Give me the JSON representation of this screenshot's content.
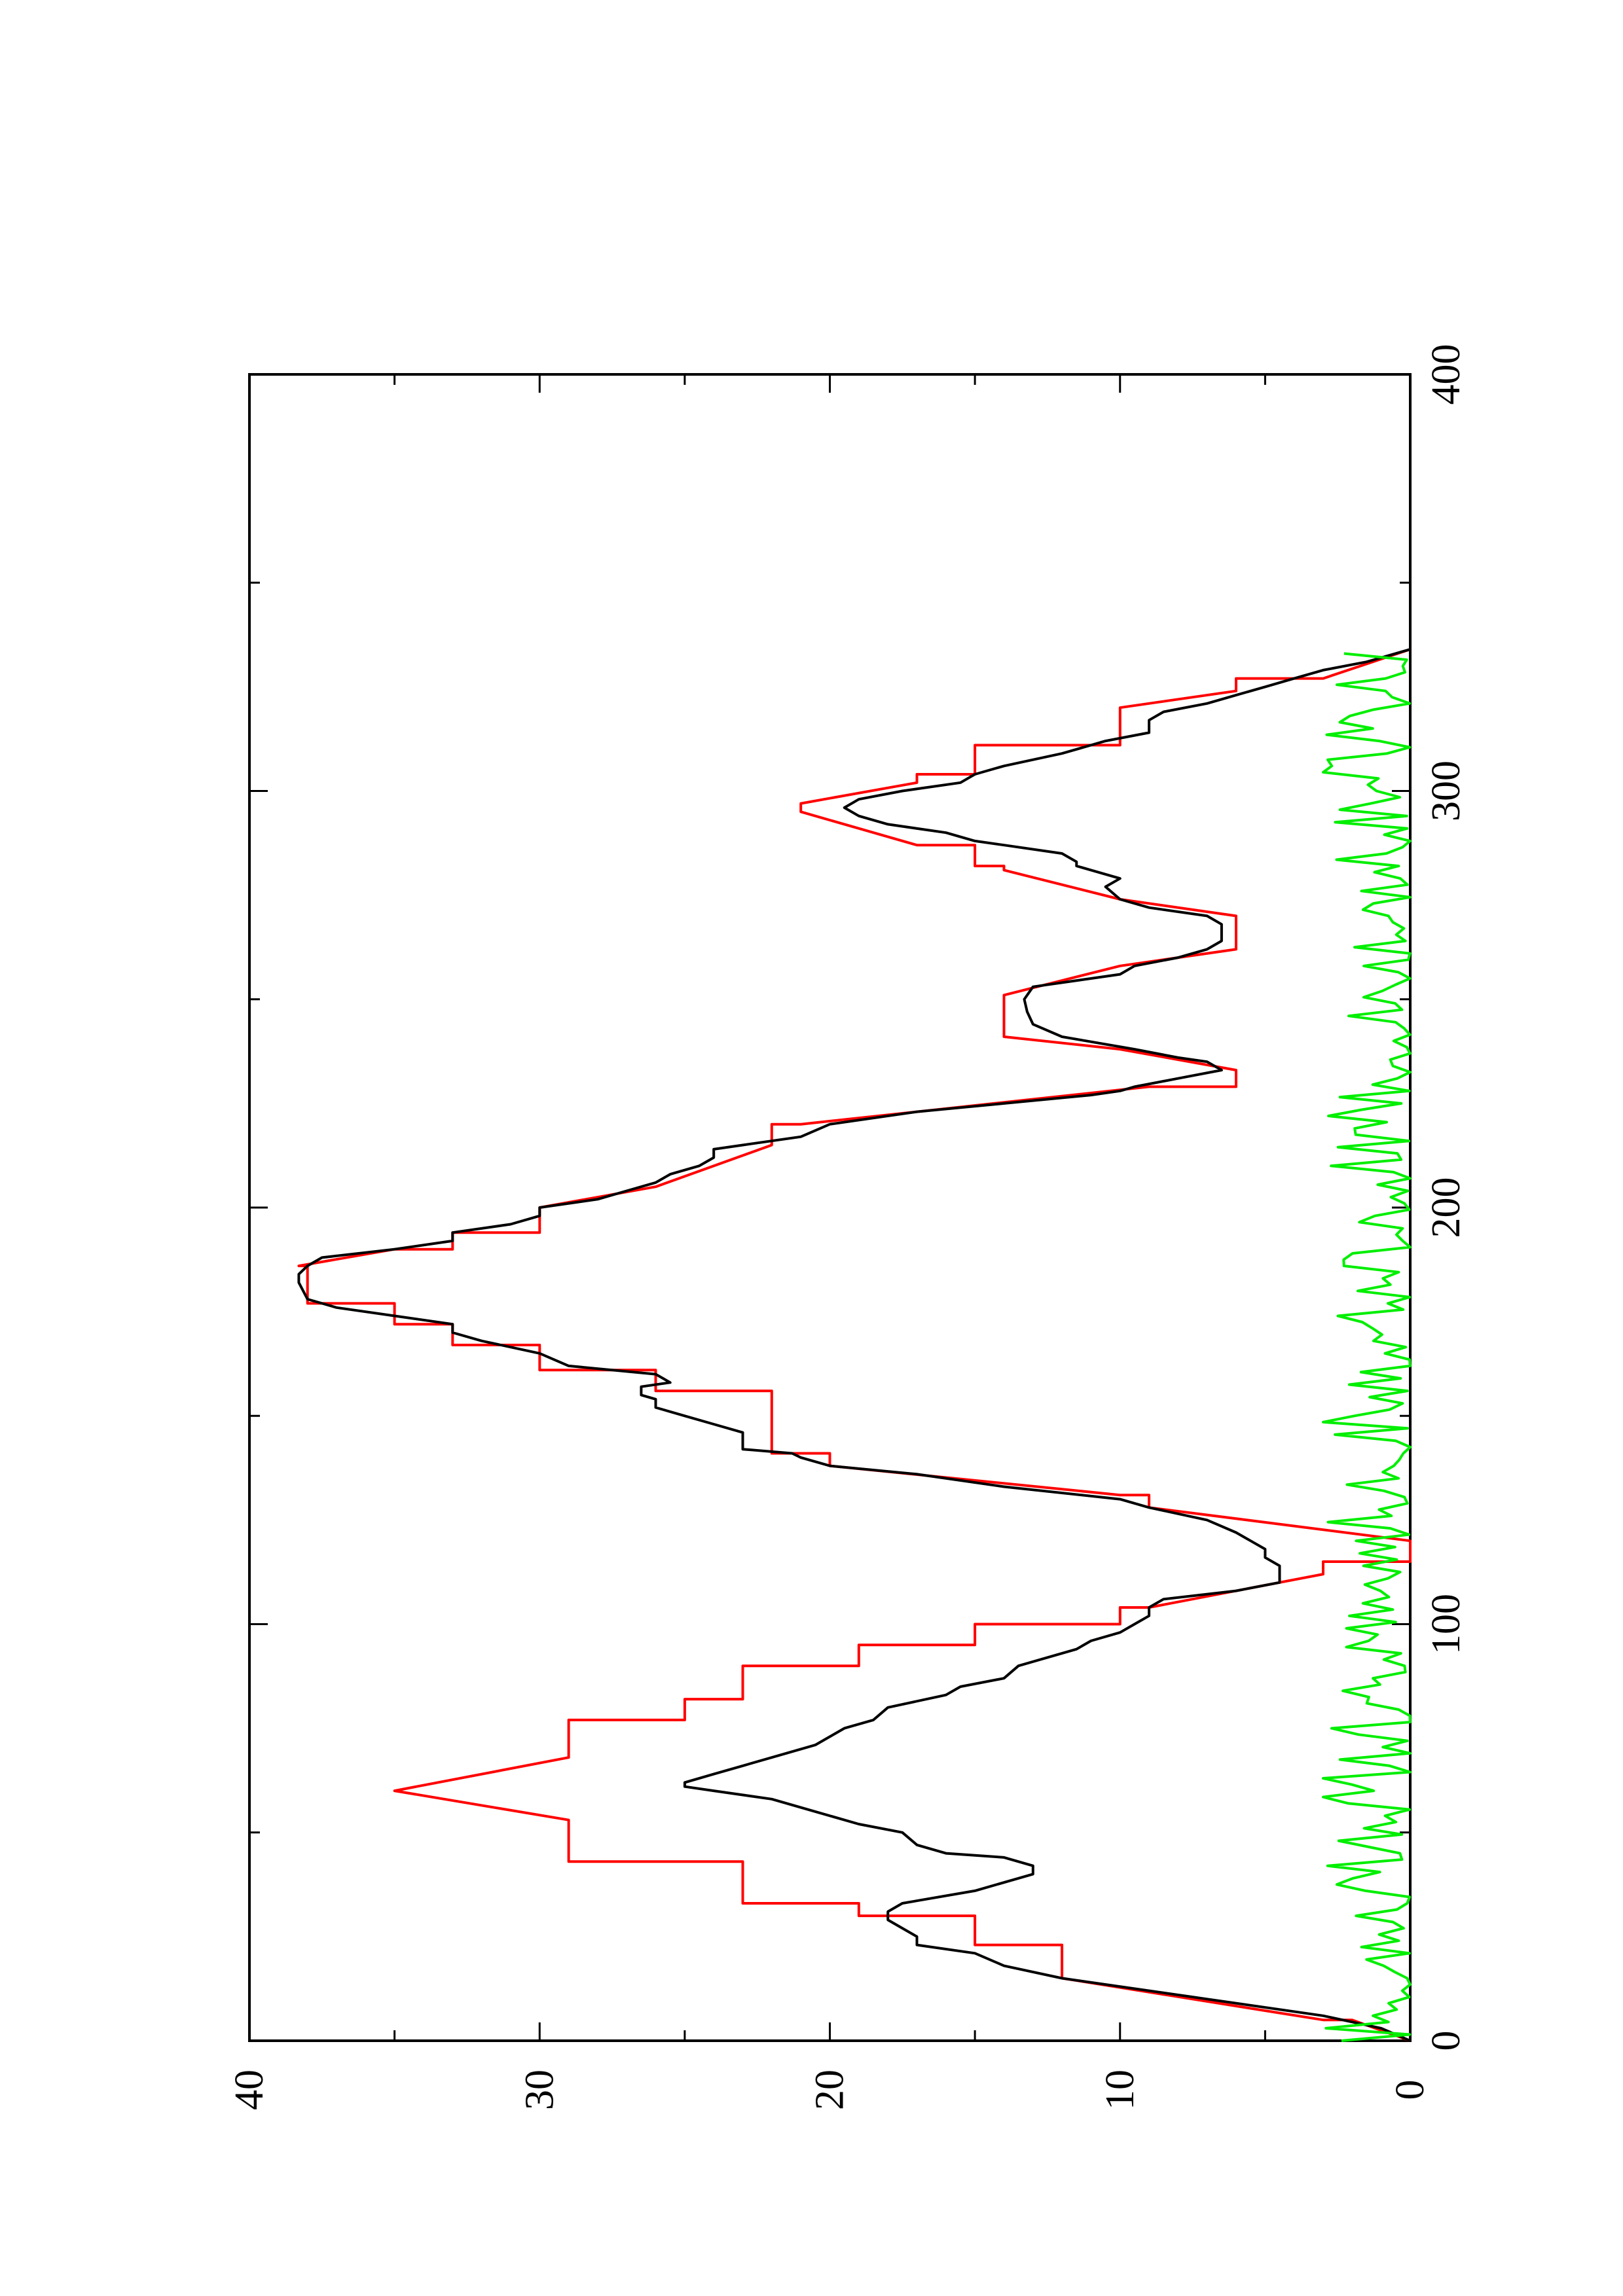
{
  "chart_data": {
    "type": "line",
    "orientation": "rotated 90° counter-clockwise (page in landscape printed on portrait sheet)",
    "title": "",
    "xlabel": "",
    "ylabel": "",
    "xlim": [
      0,
      400
    ],
    "ylim": [
      0,
      40
    ],
    "x_ticks": [
      0,
      100,
      200,
      300,
      400
    ],
    "y_ticks": [
      0,
      10,
      20,
      30,
      40
    ],
    "x_minor_ticks": [
      50,
      150,
      250,
      350
    ],
    "y_minor_ticks": [
      5,
      15,
      25,
      35
    ],
    "x_tick_labels": [
      "0",
      "100",
      "200",
      "300",
      "400"
    ],
    "y_tick_labels": [
      "0",
      "10",
      "20",
      "30",
      "40"
    ],
    "grid": false,
    "legend": "none",
    "series": [
      {
        "color": "#ff0000",
        "style": "stepped triangular profile",
        "points": [
          [
            0,
            0
          ],
          [
            5,
            2
          ],
          [
            5,
            3
          ],
          [
            15,
            12
          ],
          [
            23,
            12
          ],
          [
            23,
            15
          ],
          [
            30,
            15
          ],
          [
            30,
            19
          ],
          [
            33,
            19
          ],
          [
            33,
            23
          ],
          [
            43,
            23
          ],
          [
            43,
            29
          ],
          [
            53,
            29
          ],
          [
            60,
            35
          ],
          [
            60,
            35
          ],
          [
            68,
            29
          ],
          [
            77,
            29
          ],
          [
            77,
            25
          ],
          [
            82,
            25
          ],
          [
            82,
            23
          ],
          [
            90,
            23
          ],
          [
            90,
            19
          ],
          [
            95,
            19
          ],
          [
            95,
            15
          ],
          [
            100,
            15
          ],
          [
            100,
            10
          ],
          [
            104,
            10
          ],
          [
            104,
            9
          ],
          [
            112,
            3
          ],
          [
            115,
            3
          ],
          [
            115,
            0
          ],
          [
            120,
            0
          ],
          [
            128,
            9
          ],
          [
            131,
            9
          ],
          [
            131,
            10
          ],
          [
            138,
            20
          ],
          [
            141,
            20
          ],
          [
            141,
            22
          ],
          [
            156,
            22
          ],
          [
            156,
            26
          ],
          [
            161,
            26
          ],
          [
            161,
            30
          ],
          [
            167,
            30
          ],
          [
            167,
            33
          ],
          [
            172,
            33
          ],
          [
            172,
            35
          ],
          [
            177,
            35
          ],
          [
            177,
            38
          ],
          [
            186,
            38
          ],
          [
            186,
            38.3
          ],
          [
            190,
            35
          ],
          [
            190,
            33
          ],
          [
            194,
            33
          ],
          [
            194,
            30
          ],
          [
            200,
            30
          ],
          [
            200,
            30
          ],
          [
            205,
            26
          ],
          [
            205,
            26
          ],
          [
            215,
            22
          ],
          [
            220,
            22
          ],
          [
            220,
            21
          ],
          [
            229,
            9
          ],
          [
            229,
            6
          ],
          [
            233,
            6
          ],
          [
            238,
            10
          ],
          [
            238,
            10
          ],
          [
            241,
            14
          ],
          [
            251,
            14
          ],
          [
            251,
            14
          ],
          [
            258,
            10
          ],
          [
            258,
            10
          ],
          [
            262,
            6
          ],
          [
            270,
            6
          ],
          [
            274,
            10
          ],
          [
            274,
            10
          ],
          [
            281,
            14
          ],
          [
            282,
            14
          ],
          [
            282,
            15
          ],
          [
            287,
            15
          ],
          [
            287,
            17
          ],
          [
            295,
            21
          ],
          [
            297,
            21
          ],
          [
            302,
            17
          ],
          [
            304,
            17
          ],
          [
            304,
            15
          ],
          [
            311,
            15
          ],
          [
            311,
            10
          ],
          [
            320,
            10
          ],
          [
            320,
            10
          ],
          [
            324,
            6
          ],
          [
            327,
            6
          ],
          [
            327,
            3
          ],
          [
            334,
            0
          ]
        ]
      },
      {
        "color": "#000000",
        "style": "solid",
        "points": [
          [
            0,
            0
          ],
          [
            3,
            1
          ],
          [
            6,
            3
          ],
          [
            10,
            7
          ],
          [
            15,
            12
          ],
          [
            18,
            14
          ],
          [
            21,
            15
          ],
          [
            23,
            17
          ],
          [
            25,
            17
          ],
          [
            27,
            17.5
          ],
          [
            29,
            18
          ],
          [
            31,
            18
          ],
          [
            33,
            17.5
          ],
          [
            36,
            15
          ],
          [
            39,
            13.5
          ],
          [
            40,
            13
          ],
          [
            42,
            13
          ],
          [
            44,
            14
          ],
          [
            45,
            16
          ],
          [
            47,
            17
          ],
          [
            50,
            17.5
          ],
          [
            52,
            19
          ],
          [
            55,
            20.5
          ],
          [
            58,
            22
          ],
          [
            60,
            24
          ],
          [
            61,
            25
          ],
          [
            62,
            25
          ],
          [
            64,
            24
          ],
          [
            66,
            23
          ],
          [
            69,
            21.5
          ],
          [
            71,
            20.5
          ],
          [
            73,
            20
          ],
          [
            75,
            19.5
          ],
          [
            77,
            18.5
          ],
          [
            80,
            18
          ],
          [
            83,
            16
          ],
          [
            85,
            15.5
          ],
          [
            87,
            14
          ],
          [
            90,
            13.5
          ],
          [
            92,
            12.5
          ],
          [
            94,
            11.5
          ],
          [
            96,
            11
          ],
          [
            98,
            10
          ],
          [
            100,
            9.5
          ],
          [
            102,
            9
          ],
          [
            104,
            9
          ],
          [
            106,
            8.5
          ],
          [
            108,
            6
          ],
          [
            110,
            4.5
          ],
          [
            112,
            4.5
          ],
          [
            114,
            4.5
          ],
          [
            116,
            5
          ],
          [
            118,
            5
          ],
          [
            120,
            5.5
          ],
          [
            122,
            6
          ],
          [
            125,
            7
          ],
          [
            128,
            9
          ],
          [
            130,
            10
          ],
          [
            133,
            14
          ],
          [
            136,
            17
          ],
          [
            138,
            20
          ],
          [
            140,
            21
          ],
          [
            141,
            21.3
          ],
          [
            142,
            23
          ],
          [
            146,
            23
          ],
          [
            148,
            24
          ],
          [
            150,
            25
          ],
          [
            152,
            26
          ],
          [
            154,
            26
          ],
          [
            155,
            26.5
          ],
          [
            157,
            26.5
          ],
          [
            158,
            25.5
          ],
          [
            160,
            26
          ],
          [
            162,
            29
          ],
          [
            165,
            30
          ],
          [
            168,
            32
          ],
          [
            170,
            33
          ],
          [
            172,
            33
          ],
          [
            174,
            35
          ],
          [
            176,
            37
          ],
          [
            178,
            38
          ],
          [
            182,
            38.3
          ],
          [
            184,
            38.3
          ],
          [
            186,
            38
          ],
          [
            188,
            37.5
          ],
          [
            190,
            35
          ],
          [
            192,
            33
          ],
          [
            194,
            33
          ],
          [
            196,
            31
          ],
          [
            198,
            30
          ],
          [
            200,
            30
          ],
          [
            202,
            28
          ],
          [
            204,
            27
          ],
          [
            206,
            26
          ],
          [
            208,
            25.5
          ],
          [
            210,
            24.5
          ],
          [
            212,
            24
          ],
          [
            214,
            24
          ],
          [
            215,
            23
          ],
          [
            217,
            21
          ],
          [
            220,
            20
          ],
          [
            223,
            17
          ],
          [
            225,
            14
          ],
          [
            227,
            11
          ],
          [
            228,
            10
          ],
          [
            229,
            9.5
          ],
          [
            231,
            8
          ],
          [
            233,
            6.5
          ],
          [
            235,
            7
          ],
          [
            236,
            8
          ],
          [
            238,
            9.5
          ],
          [
            241,
            12
          ],
          [
            244,
            13
          ],
          [
            247,
            13.2
          ],
          [
            250,
            13.3
          ],
          [
            253,
            13
          ],
          [
            256,
            10
          ],
          [
            258,
            9.5
          ],
          [
            260,
            8
          ],
          [
            262,
            7
          ],
          [
            264,
            6.5
          ],
          [
            266,
            6.5
          ],
          [
            268,
            6.5
          ],
          [
            270,
            7
          ],
          [
            272,
            9
          ],
          [
            274,
            10
          ],
          [
            277,
            10.5
          ],
          [
            279,
            10
          ],
          [
            281,
            11
          ],
          [
            282,
            11.5
          ],
          [
            283,
            11.5
          ],
          [
            285,
            12
          ],
          [
            287,
            14
          ],
          [
            288,
            15
          ],
          [
            290,
            16
          ],
          [
            292,
            18
          ],
          [
            294,
            19
          ],
          [
            296,
            19.5
          ],
          [
            298,
            19
          ],
          [
            300,
            17.5
          ],
          [
            302,
            15.5
          ],
          [
            304,
            15
          ],
          [
            306,
            14
          ],
          [
            309,
            12
          ],
          [
            312,
            10.5
          ],
          [
            314,
            9
          ],
          [
            317,
            9
          ],
          [
            319,
            8.5
          ],
          [
            321,
            7
          ],
          [
            323,
            6
          ],
          [
            325,
            5
          ],
          [
            327,
            4
          ],
          [
            329,
            3
          ],
          [
            331,
            1.5
          ],
          [
            334,
            0
          ]
        ]
      },
      {
        "color": "#00ee00",
        "style": "noisy residual",
        "points": "generated by seeded noise from x=0 to x=334, values between 0 and 3"
      }
    ]
  }
}
